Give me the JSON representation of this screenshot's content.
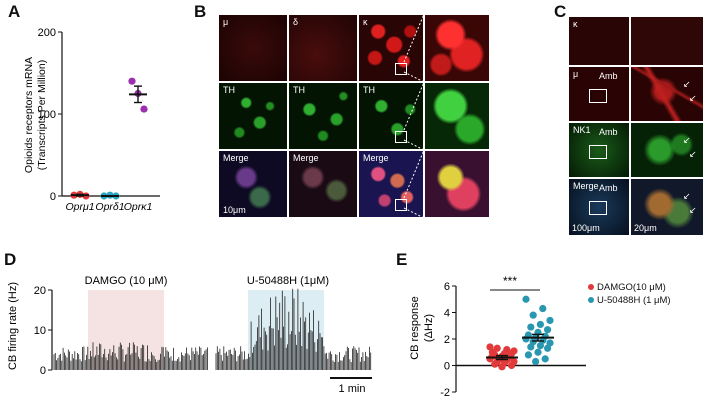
{
  "panels": {
    "A": {
      "label": "A",
      "chart_data": {
        "type": "scatter",
        "categories": [
          "Oprμ1",
          "Oprδ1",
          "Oprκ1"
        ],
        "ylabel_line1": "Opioids receptors mRNA",
        "ylabel_line2": "(Transcripts Per Million)",
        "ylim": [
          0,
          200
        ],
        "yticks": [
          "0",
          "100",
          "200"
        ],
        "points": [
          {
            "cat": 0,
            "y": 1
          },
          {
            "cat": 0,
            "y": 2
          },
          {
            "cat": 0,
            "y": 0
          },
          {
            "cat": 1,
            "y": 0
          },
          {
            "cat": 1,
            "y": 1
          },
          {
            "cat": 1,
            "y": 0
          },
          {
            "cat": 2,
            "y": 140
          },
          {
            "cat": 2,
            "y": 125
          },
          {
            "cat": 2,
            "y": 106
          }
        ],
        "mean": [
          1,
          0,
          124
        ],
        "sem": [
          1,
          0,
          10
        ],
        "colors": [
          "#e23a3a",
          "#2aa5bf",
          "#9b2fb0"
        ]
      }
    },
    "B": {
      "label": "B",
      "row_labels": [
        [
          "μ",
          "δ",
          "κ"
        ],
        [
          "TH",
          "TH",
          "TH"
        ],
        [
          "Merge",
          "Merge",
          "Merge"
        ]
      ],
      "scale_label": "10μm"
    },
    "C": {
      "label": "C",
      "row_labels": [
        "κ",
        "μ",
        "NK1",
        "Merge"
      ],
      "amb_label": "Amb",
      "scale_left": "100μm",
      "scale_right": "20μm"
    },
    "D": {
      "label": "D",
      "ylabel": "CB firing rate (Hz)",
      "yticks": [
        "0",
        "10",
        "20"
      ],
      "ylim": [
        0,
        20
      ],
      "drug1": "DAMGO (10 μM)",
      "drug2": "U-50488H (1μM)",
      "scalebar": "1 min"
    },
    "E": {
      "label": "E",
      "significance": "***",
      "chart_data": {
        "type": "scatter",
        "ylabel_line1": "CB response",
        "ylabel_line2": "(ΔHz)",
        "ylim": [
          -2,
          6
        ],
        "yticks": [
          "-2",
          "0",
          "2",
          "4",
          "6"
        ],
        "series": [
          {
            "name": "DAMGO(10 μM)",
            "color": "#e23a3a",
            "mean": 0.6,
            "sem": 0.15,
            "values": [
              1.4,
              1.2,
              1.3,
              1.1,
              0.9,
              0.8,
              0.9,
              0.7,
              0.7,
              0.6,
              0.5,
              0.5,
              0.4,
              0.3,
              0.3,
              0.2,
              0.1,
              0.0,
              -0.1,
              1.0
            ]
          },
          {
            "name": "U-50488H (1 μM)",
            "color": "#2a97b0",
            "mean": 2.1,
            "sem": 0.25,
            "values": [
              5.0,
              4.3,
              3.8,
              3.4,
              3.1,
              2.9,
              2.7,
              2.5,
              2.3,
              2.2,
              2.1,
              2.0,
              1.9,
              1.8,
              1.7,
              1.5,
              1.4,
              1.3,
              1.0,
              0.8,
              0.5,
              0.3
            ]
          }
        ]
      }
    }
  }
}
